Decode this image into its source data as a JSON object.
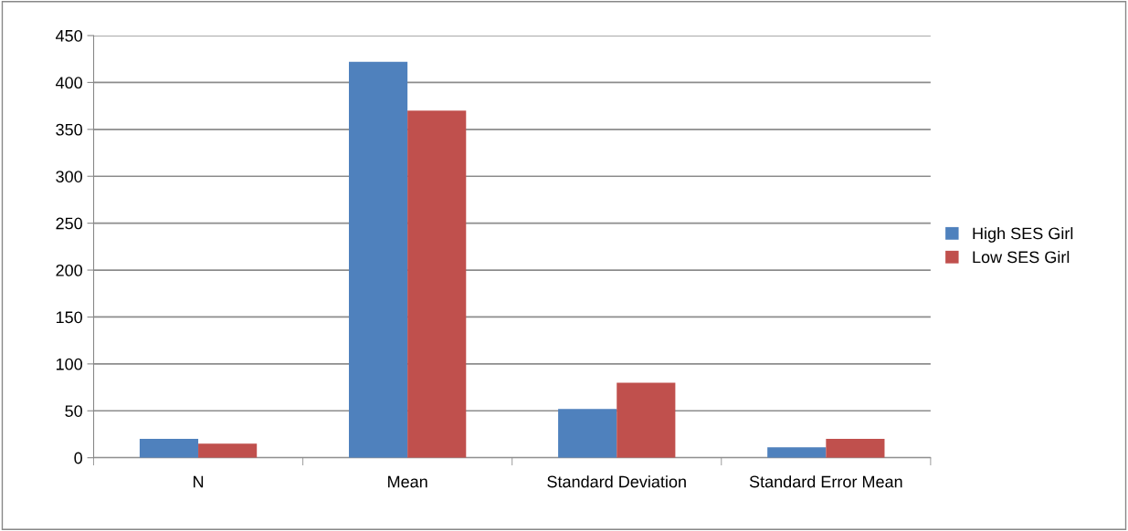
{
  "chart_data": {
    "type": "bar",
    "categories": [
      "N",
      "Mean",
      "Standard Deviation",
      "Standard Error Mean"
    ],
    "series": [
      {
        "name": "High SES Girl",
        "color": "#4f81bd",
        "values": [
          20,
          422,
          52,
          11
        ]
      },
      {
        "name": "Low SES Girl",
        "color": "#c0504d",
        "values": [
          15,
          370,
          80,
          20
        ]
      }
    ],
    "ylim": [
      0,
      450
    ],
    "yticks": [
      0,
      50,
      100,
      150,
      200,
      250,
      300,
      350,
      400,
      450
    ],
    "grid": "y",
    "legend": "right"
  }
}
